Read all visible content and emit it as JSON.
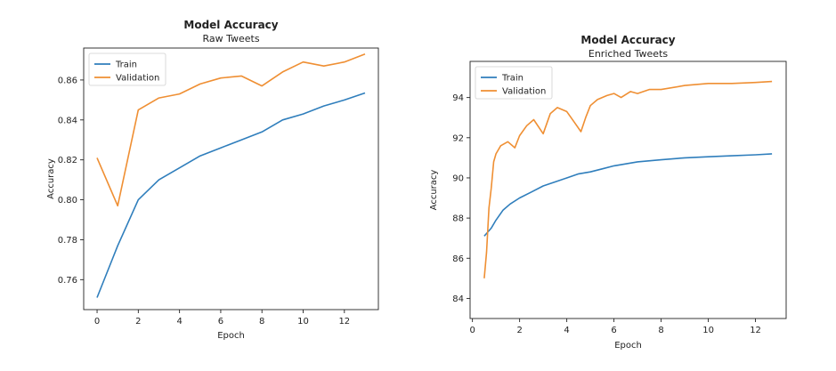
{
  "colors": {
    "train": "#2f7ebc",
    "validation": "#ef8f33",
    "axis": "#222222",
    "legend_border": "#d0d0d0"
  },
  "chart_data": [
    {
      "type": "line",
      "title": "Model Accuracy",
      "subtitle": "Raw Tweets",
      "xlabel": "Epoch",
      "ylabel": "Accuracy",
      "xlim": [
        -0.65,
        13.65
      ],
      "ylim": [
        0.745,
        0.876
      ],
      "xticks": [
        0,
        2,
        4,
        6,
        8,
        10,
        12
      ],
      "yticks": [
        0.76,
        0.78,
        0.8,
        0.82,
        0.84,
        0.86
      ],
      "xtick_labels": [
        "0",
        "2",
        "4",
        "6",
        "8",
        "10",
        "12"
      ],
      "ytick_labels": [
        "0.76",
        "0.78",
        "0.80",
        "0.82",
        "0.84",
        "0.86"
      ],
      "grid": false,
      "legend": "upper-left",
      "x": [
        0,
        1,
        2,
        3,
        4,
        5,
        6,
        7,
        8,
        9,
        10,
        11,
        12,
        13
      ],
      "series": [
        {
          "name": "Train",
          "values": [
            0.751,
            0.777,
            0.8,
            0.81,
            0.816,
            0.822,
            0.826,
            0.83,
            0.834,
            0.84,
            0.843,
            0.847,
            0.85,
            0.8535
          ]
        },
        {
          "name": "Validation",
          "values": [
            0.821,
            0.797,
            0.845,
            0.851,
            0.853,
            0.858,
            0.861,
            0.862,
            0.857,
            0.864,
            0.869,
            0.867,
            0.869,
            0.873
          ]
        }
      ]
    },
    {
      "type": "line",
      "title": "Model Accuracy",
      "subtitle": "Enriched Tweets",
      "xlabel": "Epoch",
      "ylabel": "Accuracy",
      "xlim": [
        -0.1,
        13.3
      ],
      "ylim": [
        83.0,
        95.8
      ],
      "xticks": [
        0,
        2,
        4,
        6,
        8,
        10,
        12
      ],
      "yticks": [
        84,
        86,
        88,
        90,
        92,
        94
      ],
      "xtick_labels": [
        "0",
        "2",
        "4",
        "6",
        "8",
        "10",
        "12"
      ],
      "ytick_labels": [
        "84",
        "86",
        "88",
        "90",
        "92",
        "94"
      ],
      "grid": false,
      "legend": "upper-left",
      "series": [
        {
          "name": "Train",
          "x": [
            0.5,
            0.8,
            1.0,
            1.3,
            1.6,
            2.0,
            2.5,
            3.0,
            3.5,
            4.0,
            4.5,
            5.0,
            5.5,
            6.0,
            7.0,
            8.0,
            9.0,
            10.0,
            11.0,
            12.0,
            12.7
          ],
          "values": [
            87.1,
            87.5,
            87.9,
            88.4,
            88.7,
            89.0,
            89.3,
            89.6,
            89.8,
            90.0,
            90.2,
            90.3,
            90.45,
            90.6,
            90.8,
            90.9,
            91.0,
            91.05,
            91.1,
            91.15,
            91.2
          ]
        },
        {
          "name": "Validation",
          "x": [
            0.5,
            0.6,
            0.7,
            0.8,
            0.9,
            1.0,
            1.2,
            1.5,
            1.8,
            2.0,
            2.3,
            2.6,
            3.0,
            3.3,
            3.6,
            4.0,
            4.3,
            4.6,
            4.8,
            5.0,
            5.3,
            5.7,
            6.0,
            6.3,
            6.7,
            7.0,
            7.5,
            8.0,
            9.0,
            10.0,
            11.0,
            12.0,
            12.7
          ],
          "values": [
            85.0,
            86.3,
            88.5,
            89.5,
            90.8,
            91.2,
            91.6,
            91.8,
            91.5,
            92.1,
            92.6,
            92.9,
            92.2,
            93.2,
            93.5,
            93.3,
            92.8,
            92.3,
            93.0,
            93.6,
            93.9,
            94.1,
            94.2,
            94.0,
            94.3,
            94.2,
            94.4,
            94.4,
            94.6,
            94.7,
            94.7,
            94.75,
            94.8
          ]
        }
      ]
    }
  ]
}
